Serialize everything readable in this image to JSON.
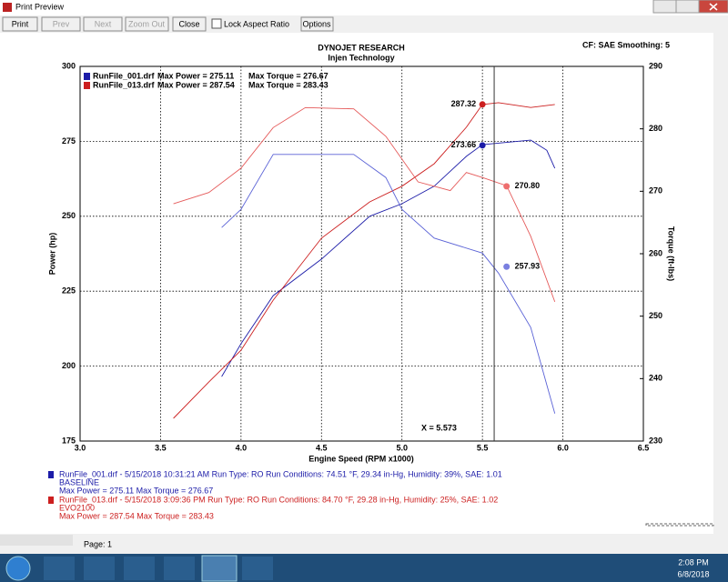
{
  "window": {
    "title": "Print Preview"
  },
  "toolbar": {
    "buttons": [
      "Print",
      "Prev",
      "Next",
      "Zoom Out",
      "Close"
    ],
    "checkbox": "Lock Aspect Ratio",
    "options": "Options"
  },
  "chart_data": {
    "type": "line",
    "title": "DYNOJET RESEARCH",
    "subtitle": "Injen Technology",
    "header_right": "CF: SAE  Smoothing: 5",
    "x_label": "Engine Speed (RPM x1000)",
    "y_label": "Power (hp)",
    "y2_label": "Torque (ft-lbs)",
    "xlim": [
      3.0,
      6.5
    ],
    "xticks": [
      {
        "value": 3.0,
        "label": "3.0"
      },
      {
        "value": 3.5,
        "label": "3.5"
      },
      {
        "value": 4.0,
        "label": "4.0"
      },
      {
        "value": 4.5,
        "label": "4.5"
      },
      {
        "value": 5.0,
        "label": "5.0"
      },
      {
        "value": 5.5,
        "label": "5.5"
      },
      {
        "value": 6.0,
        "label": "6.0"
      },
      {
        "value": 6.5,
        "label": "6.5"
      }
    ],
    "ylim": [
      175,
      300
    ],
    "yticks": [
      175,
      200,
      225,
      250,
      275,
      300
    ],
    "y2lim": [
      230,
      290
    ],
    "y2ticks": [
      230,
      240,
      250,
      260,
      270,
      280,
      290
    ],
    "grid": true,
    "runs": [
      {
        "name": "RunFile_001.drf",
        "max_power": "Max Power = 275.11",
        "max_torque": "Max Torque = 276.67",
        "color": "#1c1ca8"
      },
      {
        "name": "RunFile_013.drf",
        "max_power": "Max Power = 287.54",
        "max_torque": "Max Torque = 283.43",
        "color": "#cc1f1f"
      }
    ],
    "series": [
      {
        "color": "#1c1ca8",
        "x": [
          3.88,
          4.0,
          4.2,
          4.5,
          4.8,
          5.0,
          5.2,
          5.4,
          5.5,
          5.8,
          5.9,
          5.95
        ],
        "values": [
          196.5,
          207.5,
          223.5,
          235.7,
          250,
          254.2,
          260,
          270,
          273.9,
          275.4,
          272,
          266
        ]
      },
      {
        "color": "#cc1f1f",
        "x": [
          3.58,
          3.8,
          4.0,
          4.2,
          4.5,
          4.8,
          5.0,
          5.2,
          5.4,
          5.5,
          5.6,
          5.8,
          5.95
        ],
        "values": [
          182.6,
          194.7,
          205.3,
          222,
          242.7,
          254.8,
          260,
          267.5,
          279.7,
          287.3,
          287.9,
          286.3,
          287.3
        ]
      },
      {
        "color": "#5a62d6",
        "axis": "y2",
        "x": [
          3.88,
          4.0,
          4.2,
          4.5,
          4.7,
          4.9,
          5.0,
          5.2,
          5.5,
          5.6,
          5.8,
          5.95
        ],
        "values": [
          264.2,
          267.1,
          275.9,
          275.9,
          275.9,
          272.2,
          267.1,
          262.5,
          260.1,
          256.9,
          248.2,
          234.4
        ]
      },
      {
        "color": "#e55a5a",
        "axis": "y2",
        "x": [
          3.58,
          3.8,
          4.0,
          4.2,
          4.4,
          4.7,
          4.9,
          5.1,
          5.3,
          5.4,
          5.5,
          5.65,
          5.8,
          5.95
        ],
        "values": [
          268.0,
          269.8,
          273.7,
          280.2,
          283.4,
          283.2,
          278.8,
          271.5,
          270.1,
          273.0,
          272.2,
          270.9,
          262.8,
          252.3
        ]
      }
    ],
    "cursor_x": 5.573,
    "cursor_label": "X = 5.573",
    "readouts": {
      "x": [
        5.5,
        5.5,
        5.65,
        5.65
      ],
      "values": [
        287.32,
        273.66,
        270.8,
        257.93
      ],
      "value_labels": [
        "287.32",
        "273.66",
        "270.80",
        "257.93"
      ],
      "axes": [
        "y",
        "y",
        "y2",
        "y2"
      ],
      "colors": [
        "#cc1f1f",
        "#1c1ca8",
        "#ee6e6e",
        "#7a80e0"
      ]
    },
    "notes": [
      {
        "color": "#1c1ca8",
        "lines": [
          "RunFile_001.drf - 5/15/2018 10:31:21 AM  Run Type: RO  Run Conditions: 74.51 °F, 29.34 in-Hg,  Humidity:  39%, SAE: 1.01",
          "BASELINE",
          "Max Power = 275.11  Max Torque = 276.67"
        ]
      },
      {
        "color": "#cc1f1f",
        "lines": [
          "RunFile_013.drf - 5/15/2018 3:09:36 PM  Run Type: RO  Run Conditions: 84.70 °F, 29.28 in-Hg,  Humidity:  25%, SAE: 1.02",
          "EVO2100",
          "Max Power = 287.54  Max Torque = 283.43"
        ]
      }
    ]
  },
  "status": {
    "page": "Page: 1"
  },
  "taskbar": {
    "time": "2:08 PM",
    "date": "6/8/2018"
  }
}
